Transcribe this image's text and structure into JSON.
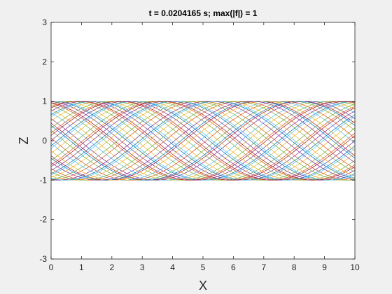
{
  "chart_data": {
    "type": "line",
    "title": "t = 0.0204165 s;  max(|f|) = 1",
    "xlabel": "X",
    "ylabel": "Z",
    "xlim": [
      0,
      10
    ],
    "ylim": [
      -3,
      3
    ],
    "x_ticks": [
      "0",
      "1",
      "2",
      "3",
      "4",
      "5",
      "6",
      "7",
      "8",
      "9",
      "10"
    ],
    "y_ticks": [
      "-3",
      "-2",
      "-1",
      "0",
      "1",
      "2",
      "3"
    ],
    "grid": false,
    "legend": "none",
    "series_family": {
      "count": 48,
      "form": "z = cos(pi*(x - s)/5 + phase)",
      "shift_s": [
        0,
        10
      ],
      "phase": [
        0,
        3.14159
      ],
      "amplitude": 1
    },
    "colors": [
      "#0072bd",
      "#d95319",
      "#edb120",
      "#7e2f8e",
      "#77ac30",
      "#4dbeee",
      "#a2142f"
    ],
    "axes_background": "#ffffff",
    "figure_background": "#f0f0f0"
  }
}
